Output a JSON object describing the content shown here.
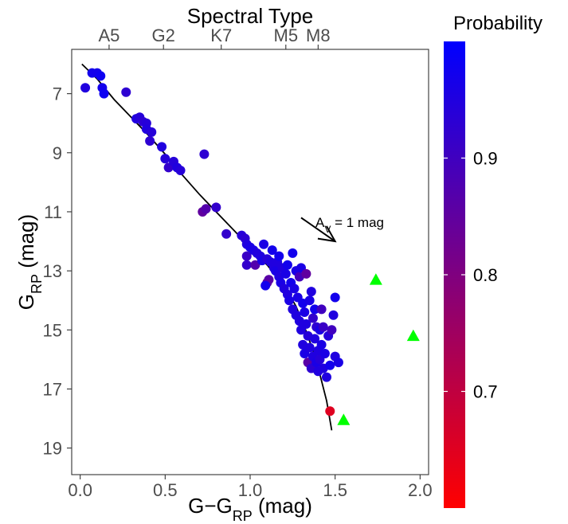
{
  "chart_data": {
    "type": "scatter",
    "title": "",
    "xlabel": "G−G",
    "xlabel_sub": "RP",
    "xlabel_unit": " (mag)",
    "ylabel": "G",
    "ylabel_sub": "RP",
    "ylabel_unit": " (mag)",
    "top_axis_title": "Spectral Type",
    "top_ticks": [
      {
        "label": "A5",
        "x": 0.17
      },
      {
        "label": "G2",
        "x": 0.49
      },
      {
        "label": "K7",
        "x": 0.83
      },
      {
        "label": "M5",
        "x": 1.21
      },
      {
        "label": "M8",
        "x": 1.4
      }
    ],
    "xlim": [
      -0.05,
      2.05
    ],
    "ylim": [
      19.9,
      5.5
    ],
    "x_ticks": [
      0.0,
      0.5,
      1.0,
      1.5,
      2.0
    ],
    "x_tick_labels": [
      "0.0",
      "0.5",
      "1.0",
      "1.5",
      "2.0"
    ],
    "y_ticks": [
      7,
      9,
      11,
      13,
      15,
      17,
      19
    ],
    "y_tick_labels": [
      "7",
      "9",
      "11",
      "13",
      "15",
      "17",
      "19"
    ],
    "grid": false,
    "colorbar": {
      "title": "Probability",
      "min": 0.6,
      "max": 1.0,
      "ticks": [
        0.7,
        0.8,
        0.9
      ],
      "tick_labels": [
        "0.7",
        "0.8",
        "0.9"
      ],
      "colors": [
        "#ff0000",
        "#0000ff"
      ]
    },
    "series": [
      {
        "marker": "circle",
        "points": [
          {
            "x": 0.03,
            "y": 6.8,
            "p": 0.95
          },
          {
            "x": 0.07,
            "y": 6.3,
            "p": 0.97
          },
          {
            "x": 0.1,
            "y": 6.3,
            "p": 0.97
          },
          {
            "x": 0.12,
            "y": 6.4,
            "p": 0.98
          },
          {
            "x": 0.13,
            "y": 6.8,
            "p": 0.97
          },
          {
            "x": 0.14,
            "y": 7.0,
            "p": 0.98
          },
          {
            "x": 0.27,
            "y": 6.95,
            "p": 0.93
          },
          {
            "x": 0.33,
            "y": 7.85,
            "p": 0.95
          },
          {
            "x": 0.35,
            "y": 7.8,
            "p": 0.94
          },
          {
            "x": 0.37,
            "y": 7.95,
            "p": 0.93
          },
          {
            "x": 0.39,
            "y": 8.0,
            "p": 0.94
          },
          {
            "x": 0.39,
            "y": 8.2,
            "p": 0.95
          },
          {
            "x": 0.42,
            "y": 8.3,
            "p": 0.94
          },
          {
            "x": 0.41,
            "y": 8.6,
            "p": 0.93
          },
          {
            "x": 0.48,
            "y": 8.8,
            "p": 0.95
          },
          {
            "x": 0.5,
            "y": 9.2,
            "p": 0.94
          },
          {
            "x": 0.52,
            "y": 9.5,
            "p": 0.92
          },
          {
            "x": 0.55,
            "y": 9.3,
            "p": 0.94
          },
          {
            "x": 0.57,
            "y": 9.5,
            "p": 0.95
          },
          {
            "x": 0.59,
            "y": 9.6,
            "p": 0.94
          },
          {
            "x": 0.73,
            "y": 9.05,
            "p": 0.93
          },
          {
            "x": 0.72,
            "y": 11.0,
            "p": 0.85
          },
          {
            "x": 0.74,
            "y": 10.9,
            "p": 0.87
          },
          {
            "x": 0.8,
            "y": 10.85,
            "p": 0.92
          },
          {
            "x": 0.86,
            "y": 11.75,
            "p": 0.92
          },
          {
            "x": 0.95,
            "y": 11.8,
            "p": 0.94
          },
          {
            "x": 0.97,
            "y": 11.9,
            "p": 0.93
          },
          {
            "x": 0.98,
            "y": 12.1,
            "p": 0.95
          },
          {
            "x": 0.98,
            "y": 12.5,
            "p": 0.91
          },
          {
            "x": 1.0,
            "y": 12.2,
            "p": 0.96
          },
          {
            "x": 0.98,
            "y": 12.8,
            "p": 0.92
          },
          {
            "x": 1.02,
            "y": 12.3,
            "p": 0.96
          },
          {
            "x": 1.04,
            "y": 12.4,
            "p": 0.95
          },
          {
            "x": 1.03,
            "y": 12.8,
            "p": 0.87
          },
          {
            "x": 1.06,
            "y": 12.5,
            "p": 0.95
          },
          {
            "x": 1.07,
            "y": 12.65,
            "p": 0.96
          },
          {
            "x": 1.08,
            "y": 12.1,
            "p": 0.96
          },
          {
            "x": 1.1,
            "y": 12.6,
            "p": 0.94
          },
          {
            "x": 1.1,
            "y": 13.4,
            "p": 0.84
          },
          {
            "x": 1.11,
            "y": 13.3,
            "p": 0.86
          },
          {
            "x": 1.09,
            "y": 13.5,
            "p": 0.97
          },
          {
            "x": 1.12,
            "y": 12.7,
            "p": 0.95
          },
          {
            "x": 1.13,
            "y": 12.3,
            "p": 0.97
          },
          {
            "x": 1.14,
            "y": 12.9,
            "p": 0.95
          },
          {
            "x": 1.15,
            "y": 13.0,
            "p": 0.96
          },
          {
            "x": 1.16,
            "y": 12.7,
            "p": 0.95
          },
          {
            "x": 1.17,
            "y": 12.5,
            "p": 0.97
          },
          {
            "x": 1.17,
            "y": 13.2,
            "p": 0.95
          },
          {
            "x": 1.18,
            "y": 13.4,
            "p": 0.96
          },
          {
            "x": 1.19,
            "y": 12.9,
            "p": 0.95
          },
          {
            "x": 1.2,
            "y": 13.6,
            "p": 0.95
          },
          {
            "x": 1.21,
            "y": 13.1,
            "p": 0.96
          },
          {
            "x": 1.22,
            "y": 12.8,
            "p": 0.97
          },
          {
            "x": 1.22,
            "y": 13.8,
            "p": 0.95
          },
          {
            "x": 1.23,
            "y": 14.0,
            "p": 0.96
          },
          {
            "x": 1.24,
            "y": 13.4,
            "p": 0.97
          },
          {
            "x": 1.25,
            "y": 12.4,
            "p": 0.97
          },
          {
            "x": 1.25,
            "y": 14.3,
            "p": 0.95
          },
          {
            "x": 1.26,
            "y": 13.6,
            "p": 0.96
          },
          {
            "x": 1.27,
            "y": 14.5,
            "p": 0.95
          },
          {
            "x": 1.27,
            "y": 13.0,
            "p": 0.96
          },
          {
            "x": 1.28,
            "y": 13.9,
            "p": 0.96
          },
          {
            "x": 1.29,
            "y": 14.7,
            "p": 0.95
          },
          {
            "x": 1.29,
            "y": 13.2,
            "p": 0.89
          },
          {
            "x": 1.3,
            "y": 12.9,
            "p": 0.96
          },
          {
            "x": 1.3,
            "y": 15.0,
            "p": 0.95
          },
          {
            "x": 1.31,
            "y": 14.1,
            "p": 0.97
          },
          {
            "x": 1.31,
            "y": 15.5,
            "p": 0.95
          },
          {
            "x": 1.32,
            "y": 14.4,
            "p": 0.96
          },
          {
            "x": 1.32,
            "y": 15.8,
            "p": 0.96
          },
          {
            "x": 1.33,
            "y": 13.1,
            "p": 0.85
          },
          {
            "x": 1.33,
            "y": 14.8,
            "p": 0.95
          },
          {
            "x": 1.34,
            "y": 15.2,
            "p": 0.94
          },
          {
            "x": 1.34,
            "y": 16.1,
            "p": 0.86
          },
          {
            "x": 1.35,
            "y": 14.0,
            "p": 0.96
          },
          {
            "x": 1.35,
            "y": 15.6,
            "p": 0.95
          },
          {
            "x": 1.36,
            "y": 13.7,
            "p": 0.95
          },
          {
            "x": 1.36,
            "y": 16.3,
            "p": 0.93
          },
          {
            "x": 1.37,
            "y": 14.6,
            "p": 0.92
          },
          {
            "x": 1.37,
            "y": 15.9,
            "p": 0.95
          },
          {
            "x": 1.38,
            "y": 14.3,
            "p": 0.97
          },
          {
            "x": 1.38,
            "y": 15.3,
            "p": 0.95
          },
          {
            "x": 1.39,
            "y": 16.1,
            "p": 0.96
          },
          {
            "x": 1.39,
            "y": 14.9,
            "p": 0.93
          },
          {
            "x": 1.4,
            "y": 15.7,
            "p": 0.95
          },
          {
            "x": 1.4,
            "y": 16.4,
            "p": 0.95
          },
          {
            "x": 1.41,
            "y": 15.0,
            "p": 0.96
          },
          {
            "x": 1.41,
            "y": 16.0,
            "p": 0.94
          },
          {
            "x": 1.42,
            "y": 14.3,
            "p": 0.9
          },
          {
            "x": 1.42,
            "y": 15.5,
            "p": 0.96
          },
          {
            "x": 1.43,
            "y": 16.3,
            "p": 0.95
          },
          {
            "x": 1.43,
            "y": 14.9,
            "p": 0.91
          },
          {
            "x": 1.44,
            "y": 15.8,
            "p": 0.96
          },
          {
            "x": 1.45,
            "y": 16.6,
            "p": 0.95
          },
          {
            "x": 1.46,
            "y": 15.2,
            "p": 0.94
          },
          {
            "x": 1.47,
            "y": 16.2,
            "p": 0.97
          },
          {
            "x": 1.48,
            "y": 15.0,
            "p": 0.9
          },
          {
            "x": 1.49,
            "y": 14.5,
            "p": 0.95
          },
          {
            "x": 1.5,
            "y": 15.9,
            "p": 0.95
          },
          {
            "x": 1.5,
            "y": 13.9,
            "p": 0.97
          },
          {
            "x": 1.52,
            "y": 16.1,
            "p": 0.96
          },
          {
            "x": 1.47,
            "y": 17.75,
            "p": 0.65
          }
        ]
      },
      {
        "marker": "triangle",
        "color": "#00ff00",
        "points": [
          {
            "x": 1.74,
            "y": 13.3
          },
          {
            "x": 1.96,
            "y": 15.2
          },
          {
            "x": 1.55,
            "y": 18.05
          }
        ]
      }
    ],
    "sequence_line": [
      [
        0.01,
        6.0
      ],
      [
        0.1,
        6.5
      ],
      [
        0.2,
        7.2
      ],
      [
        0.3,
        7.8
      ],
      [
        0.4,
        8.4
      ],
      [
        0.5,
        9.05
      ],
      [
        0.6,
        9.75
      ],
      [
        0.7,
        10.4
      ],
      [
        0.8,
        11.0
      ],
      [
        0.9,
        11.6
      ],
      [
        1.0,
        12.2
      ],
      [
        1.1,
        12.8
      ],
      [
        1.2,
        13.5
      ],
      [
        1.27,
        14.2
      ],
      [
        1.32,
        14.9
      ],
      [
        1.37,
        15.7
      ],
      [
        1.41,
        16.5
      ],
      [
        1.45,
        17.4
      ],
      [
        1.48,
        18.4
      ]
    ],
    "annotation": {
      "text": "A",
      "sub": "V",
      "rest": " = 1 mag",
      "arrow_from": [
        1.3,
        11.2
      ],
      "arrow_to": [
        1.5,
        12.0
      ]
    }
  }
}
